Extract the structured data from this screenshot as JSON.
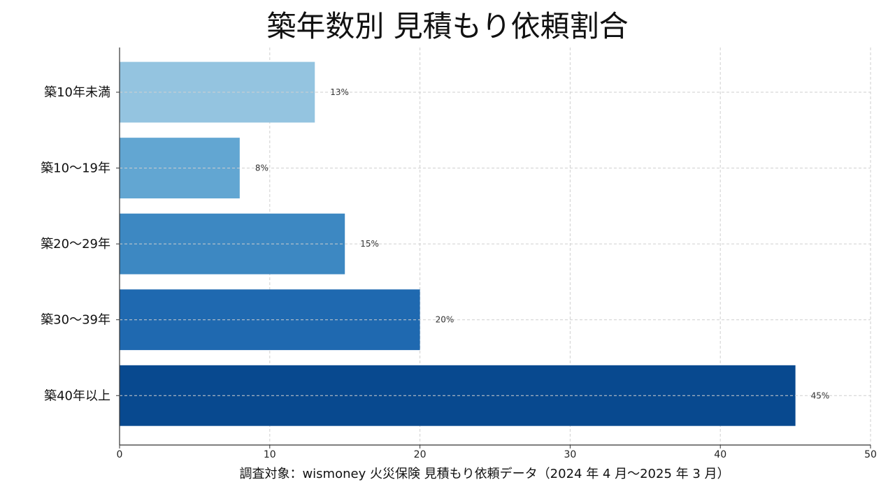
{
  "chart_data": {
    "type": "bar",
    "orientation": "horizontal",
    "title": "築年数別 見積もり依頼割合",
    "categories": [
      "築10年未満",
      "築10〜19年",
      "築20〜29年",
      "築30〜39年",
      "築40年以上"
    ],
    "values": [
      13,
      8,
      15,
      20,
      45
    ],
    "value_labels": [
      "13%",
      "8%",
      "15%",
      "20%",
      "45%"
    ],
    "bar_colors": [
      "#94c4e0",
      "#62a6d2",
      "#3d88c2",
      "#1f69b0",
      "#08498f"
    ],
    "xlabel": "調査対象：wismoney 火災保険 見積もり依頼データ（2024 年 4 月〜2025 年 3 月）",
    "ylabel": "",
    "xlim": [
      0,
      50
    ],
    "xticks": [
      0,
      10,
      20,
      30,
      40,
      50
    ],
    "grid": true,
    "legend": "none"
  }
}
